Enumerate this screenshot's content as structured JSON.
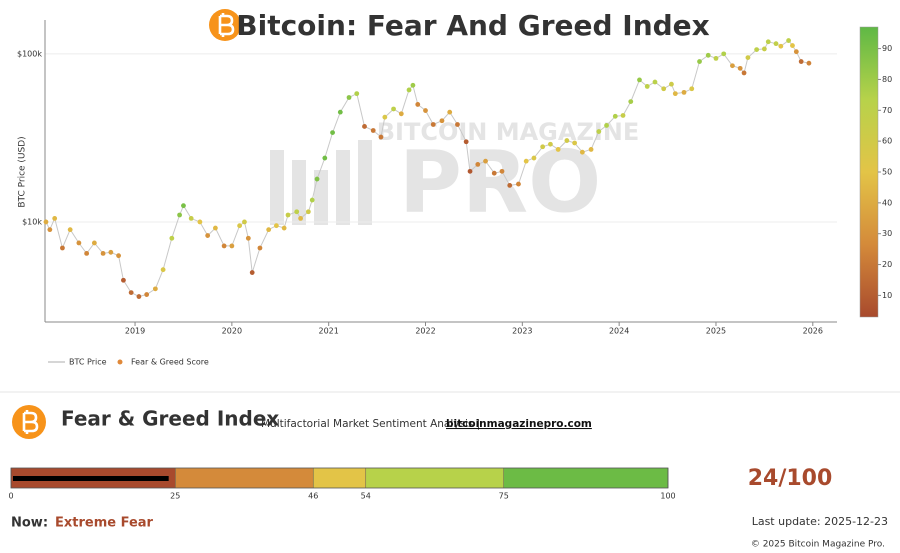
{
  "chart_data": {
    "type": "scatter",
    "title": "Bitcoin: Fear And Greed Index",
    "y_label": "BTC Price (USD)",
    "watermark": [
      "BITCOIN MAGAZINE",
      "PRO"
    ],
    "x": [
      2018.08,
      2018.12,
      2018.17,
      2018.25,
      2018.33,
      2018.42,
      2018.5,
      2018.58,
      2018.67,
      2018.75,
      2018.83,
      2018.88,
      2018.96,
      2019.04,
      2019.12,
      2019.21,
      2019.29,
      2019.38,
      2019.46,
      2019.5,
      2019.58,
      2019.67,
      2019.75,
      2019.83,
      2019.92,
      2020.0,
      2020.08,
      2020.13,
      2020.17,
      2020.21,
      2020.29,
      2020.38,
      2020.46,
      2020.54,
      2020.58,
      2020.67,
      2020.71,
      2020.79,
      2020.83,
      2020.88,
      2020.96,
      2021.04,
      2021.12,
      2021.21,
      2021.29,
      2021.37,
      2021.46,
      2021.54,
      2021.58,
      2021.67,
      2021.75,
      2021.83,
      2021.87,
      2021.92,
      2022.0,
      2022.08,
      2022.17,
      2022.25,
      2022.33,
      2022.42,
      2022.46,
      2022.54,
      2022.62,
      2022.71,
      2022.79,
      2022.87,
      2022.96,
      2023.04,
      2023.12,
      2023.21,
      2023.29,
      2023.37,
      2023.46,
      2023.54,
      2023.62,
      2023.71,
      2023.79,
      2023.87,
      2023.96,
      2024.04,
      2024.12,
      2024.21,
      2024.29,
      2024.37,
      2024.46,
      2024.54,
      2024.58,
      2024.67,
      2024.75,
      2024.83,
      2024.92,
      2025.0,
      2025.08,
      2025.17,
      2025.25,
      2025.29,
      2025.33,
      2025.42,
      2025.5,
      2025.54,
      2025.62,
      2025.67,
      2025.75,
      2025.79,
      2025.83,
      2025.88,
      2025.96
    ],
    "series": [
      {
        "name": "BTC Price",
        "color": "#c8c8c8",
        "values": [
          10000,
          9000,
          10500,
          7000,
          9000,
          7500,
          6500,
          7500,
          6500,
          6600,
          6300,
          4500,
          3800,
          3600,
          3700,
          4000,
          5200,
          8000,
          11000,
          12500,
          10500,
          10000,
          8300,
          9200,
          7200,
          7200,
          9500,
          10000,
          8000,
          5000,
          7000,
          9000,
          9500,
          9200,
          11000,
          11500,
          10500,
          11500,
          13500,
          18000,
          24000,
          34000,
          45000,
          55000,
          58000,
          37000,
          35000,
          32000,
          42000,
          47000,
          44000,
          61000,
          65000,
          50000,
          46000,
          38000,
          40000,
          45000,
          38000,
          30000,
          20000,
          22000,
          23000,
          19500,
          20000,
          16500,
          16800,
          23000,
          24000,
          28000,
          29000,
          27000,
          30500,
          29500,
          26000,
          27000,
          34500,
          37500,
          42500,
          43000,
          52000,
          70000,
          64000,
          68000,
          62000,
          66000,
          58000,
          59000,
          62000,
          90000,
          98000,
          94000,
          100000,
          85000,
          82000,
          77000,
          95000,
          106000,
          107000,
          118000,
          115000,
          111000,
          120000,
          112000,
          103000,
          90000,
          88000
        ]
      },
      {
        "name": "Fear & Greed Score",
        "color": "#e0893a",
        "values": [
          40,
          30,
          45,
          20,
          45,
          30,
          25,
          40,
          30,
          35,
          30,
          10,
          15,
          15,
          25,
          40,
          55,
          70,
          85,
          90,
          65,
          50,
          30,
          45,
          25,
          35,
          55,
          60,
          30,
          10,
          25,
          45,
          50,
          45,
          65,
          70,
          45,
          60,
          75,
          88,
          92,
          92,
          92,
          85,
          75,
          15,
          20,
          20,
          55,
          70,
          40,
          75,
          80,
          25,
          30,
          20,
          30,
          40,
          20,
          10,
          8,
          25,
          35,
          20,
          25,
          15,
          25,
          50,
          55,
          60,
          60,
          50,
          60,
          55,
          45,
          45,
          70,
          75,
          75,
          65,
          78,
          82,
          70,
          72,
          60,
          62,
          45,
          40,
          55,
          82,
          80,
          70,
          75,
          35,
          30,
          20,
          60,
          70,
          65,
          70,
          68,
          50,
          70,
          50,
          30,
          15,
          24
        ]
      }
    ],
    "xlim": [
      2018.07,
      2026.25
    ],
    "xticks": [
      2019,
      2020,
      2021,
      2022,
      2023,
      2024,
      2025,
      2026
    ],
    "ylim": [
      2540,
      159000
    ],
    "ylog": true,
    "grid": true,
    "yticks": [
      {
        "value": 10000,
        "label": "$10k"
      },
      {
        "value": 100000,
        "label": "$100k"
      }
    ],
    "colorbar": {
      "zlim": [
        3,
        97
      ],
      "zticks": [
        10,
        20,
        30,
        40,
        50,
        60,
        70,
        80,
        90
      ],
      "colors": [
        "#a84a2d",
        "#d48a3a",
        "#e3c447",
        "#b7d24a",
        "#5fb845"
      ]
    }
  },
  "panel": {
    "title": "Fear & Greed Index",
    "subtitle": "Multifactorial Market Sentiment Analysis |",
    "link": "bitcoinmagazinepro.com",
    "gauge": {
      "value": 24,
      "value_label": "24/100",
      "ticks": [
        0,
        25,
        46,
        54,
        75,
        100
      ],
      "colors": [
        "#a84a2d",
        "#d48a3a",
        "#e3c447",
        "#b7d24a",
        "#6cbb45"
      ]
    },
    "now_label": "Now:",
    "now_value": "Extreme Fear",
    "last_update": "Last update: 2025-12-23",
    "copyright": "© 2025 Bitcoin Magazine Pro."
  }
}
